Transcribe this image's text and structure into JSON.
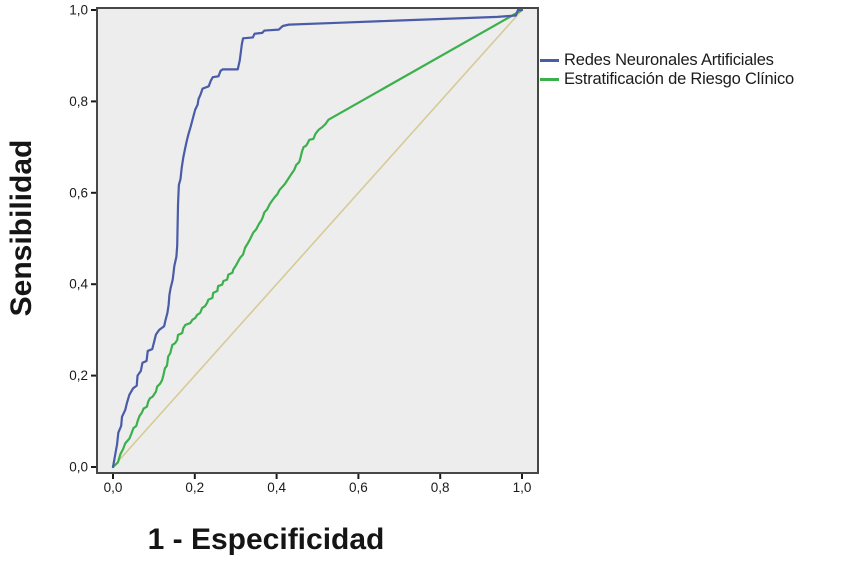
{
  "chart_data": {
    "type": "line",
    "subtype": "roc-curve",
    "title": "",
    "xlabel": "1 - Especificidad",
    "ylabel": "Sensibilidad",
    "xlim": [
      0,
      1
    ],
    "ylim": [
      0,
      1
    ],
    "grid": false,
    "plot_bg": "#ededed",
    "plot_border_color": "#474747",
    "tick_color": "#1a1a1a",
    "tick_label_color": "#1a1a1a",
    "x_ticks": {
      "values": [
        0,
        0.2,
        0.4,
        0.6,
        0.8,
        1.0
      ],
      "labels": [
        "0,0",
        "0,2",
        "0,4",
        "0,6",
        "0,8",
        "1,0"
      ]
    },
    "y_ticks": {
      "values": [
        0,
        0.2,
        0.4,
        0.6,
        0.8,
        1.0
      ],
      "labels": [
        "0,0",
        "0,2",
        "0,4",
        "0,6",
        "0,8",
        "1,0"
      ]
    },
    "legend": {
      "position": "right",
      "entries": [
        {
          "label": "Redes Neuronales Artificiales",
          "color": "#4a5ba8"
        },
        {
          "label": "Estratificación de Riesgo Clínico",
          "color": "#3cb04c"
        }
      ]
    },
    "reference_line": {
      "name": "diagonal-reference",
      "color": "#d6cb96",
      "points": [
        [
          0,
          0
        ],
        [
          1,
          1
        ]
      ]
    },
    "series": [
      {
        "name": "Estratificación de Riesgo Clínico",
        "color": "#3cb04c",
        "points": [
          [
            0,
            0
          ],
          [
            0.012,
            0.01
          ],
          [
            0.018,
            0.028
          ],
          [
            0.025,
            0.04
          ],
          [
            0.03,
            0.052
          ],
          [
            0.04,
            0.062
          ],
          [
            0.045,
            0.073
          ],
          [
            0.05,
            0.085
          ],
          [
            0.057,
            0.09
          ],
          [
            0.06,
            0.1
          ],
          [
            0.065,
            0.112
          ],
          [
            0.07,
            0.118
          ],
          [
            0.075,
            0.128
          ],
          [
            0.083,
            0.132
          ],
          [
            0.086,
            0.143
          ],
          [
            0.09,
            0.15
          ],
          [
            0.097,
            0.154
          ],
          [
            0.105,
            0.165
          ],
          [
            0.108,
            0.176
          ],
          [
            0.115,
            0.182
          ],
          [
            0.12,
            0.19
          ],
          [
            0.123,
            0.2
          ],
          [
            0.127,
            0.216
          ],
          [
            0.132,
            0.222
          ],
          [
            0.135,
            0.242
          ],
          [
            0.14,
            0.249
          ],
          [
            0.145,
            0.267
          ],
          [
            0.152,
            0.271
          ],
          [
            0.157,
            0.278
          ],
          [
            0.159,
            0.289
          ],
          [
            0.169,
            0.293
          ],
          [
            0.172,
            0.304
          ],
          [
            0.177,
            0.311
          ],
          [
            0.189,
            0.315
          ],
          [
            0.194,
            0.322
          ],
          [
            0.201,
            0.326
          ],
          [
            0.206,
            0.333
          ],
          [
            0.213,
            0.337
          ],
          [
            0.218,
            0.348
          ],
          [
            0.225,
            0.352
          ],
          [
            0.23,
            0.359
          ],
          [
            0.233,
            0.366
          ],
          [
            0.243,
            0.37
          ],
          [
            0.245,
            0.381
          ],
          [
            0.255,
            0.385
          ],
          [
            0.257,
            0.396
          ],
          [
            0.267,
            0.399
          ],
          [
            0.27,
            0.407
          ],
          [
            0.279,
            0.41
          ],
          [
            0.282,
            0.421
          ],
          [
            0.292,
            0.425
          ],
          [
            0.294,
            0.432
          ],
          [
            0.3,
            0.44
          ],
          [
            0.306,
            0.45
          ],
          [
            0.311,
            0.458
          ],
          [
            0.318,
            0.465
          ],
          [
            0.323,
            0.48
          ],
          [
            0.33,
            0.49
          ],
          [
            0.336,
            0.5
          ],
          [
            0.343,
            0.513
          ],
          [
            0.35,
            0.52
          ],
          [
            0.357,
            0.532
          ],
          [
            0.363,
            0.54
          ],
          [
            0.366,
            0.546
          ],
          [
            0.37,
            0.557
          ],
          [
            0.377,
            0.564
          ],
          [
            0.383,
            0.575
          ],
          [
            0.39,
            0.584
          ],
          [
            0.395,
            0.59
          ],
          [
            0.402,
            0.597
          ],
          [
            0.407,
            0.606
          ],
          [
            0.413,
            0.612
          ],
          [
            0.42,
            0.619
          ],
          [
            0.428,
            0.63
          ],
          [
            0.436,
            0.641
          ],
          [
            0.443,
            0.65
          ],
          [
            0.448,
            0.661
          ],
          [
            0.455,
            0.667
          ],
          [
            0.458,
            0.675
          ],
          [
            0.462,
            0.69
          ],
          [
            0.466,
            0.7
          ],
          [
            0.472,
            0.703
          ],
          [
            0.475,
            0.707
          ],
          [
            0.48,
            0.716
          ],
          [
            0.49,
            0.718
          ],
          [
            0.495,
            0.729
          ],
          [
            0.503,
            0.738
          ],
          [
            0.512,
            0.744
          ],
          [
            0.52,
            0.751
          ],
          [
            0.527,
            0.76
          ],
          [
            1,
            1
          ]
        ]
      },
      {
        "name": "Redes Neuronales Artificiales",
        "color": "#4a5ba8",
        "points": [
          [
            0,
            0
          ],
          [
            0.005,
            0.025
          ],
          [
            0.01,
            0.05
          ],
          [
            0.013,
            0.075
          ],
          [
            0.02,
            0.09
          ],
          [
            0.022,
            0.11
          ],
          [
            0.03,
            0.125
          ],
          [
            0.034,
            0.14
          ],
          [
            0.04,
            0.158
          ],
          [
            0.049,
            0.172
          ],
          [
            0.058,
            0.178
          ],
          [
            0.06,
            0.2
          ],
          [
            0.068,
            0.21
          ],
          [
            0.072,
            0.228
          ],
          [
            0.082,
            0.232
          ],
          [
            0.085,
            0.254
          ],
          [
            0.096,
            0.258
          ],
          [
            0.1,
            0.272
          ],
          [
            0.105,
            0.29
          ],
          [
            0.113,
            0.3
          ],
          [
            0.125,
            0.308
          ],
          [
            0.128,
            0.32
          ],
          [
            0.133,
            0.337
          ],
          [
            0.136,
            0.355
          ],
          [
            0.138,
            0.377
          ],
          [
            0.141,
            0.392
          ],
          [
            0.146,
            0.41
          ],
          [
            0.148,
            0.425
          ],
          [
            0.15,
            0.44
          ],
          [
            0.155,
            0.46
          ],
          [
            0.157,
            0.485
          ],
          [
            0.158,
            0.53
          ],
          [
            0.159,
            0.575
          ],
          [
            0.161,
            0.617
          ],
          [
            0.165,
            0.63
          ],
          [
            0.168,
            0.655
          ],
          [
            0.172,
            0.678
          ],
          [
            0.177,
            0.7
          ],
          [
            0.181,
            0.716
          ],
          [
            0.185,
            0.73
          ],
          [
            0.19,
            0.745
          ],
          [
            0.195,
            0.762
          ],
          [
            0.201,
            0.782
          ],
          [
            0.207,
            0.793
          ],
          [
            0.209,
            0.805
          ],
          [
            0.214,
            0.815
          ],
          [
            0.219,
            0.828
          ],
          [
            0.234,
            0.833
          ],
          [
            0.239,
            0.845
          ],
          [
            0.244,
            0.853
          ],
          [
            0.258,
            0.855
          ],
          [
            0.263,
            0.867
          ],
          [
            0.268,
            0.87
          ],
          [
            0.305,
            0.87
          ],
          [
            0.31,
            0.89
          ],
          [
            0.315,
            0.925
          ],
          [
            0.318,
            0.938
          ],
          [
            0.342,
            0.94
          ],
          [
            0.346,
            0.948
          ],
          [
            0.365,
            0.95
          ],
          [
            0.37,
            0.955
          ],
          [
            0.405,
            0.957
          ],
          [
            0.415,
            0.965
          ],
          [
            0.43,
            0.968
          ],
          [
            0.55,
            0.972
          ],
          [
            0.7,
            0.977
          ],
          [
            0.85,
            0.982
          ],
          [
            0.94,
            0.985
          ],
          [
            0.985,
            0.988
          ],
          [
            0.99,
            1
          ],
          [
            1,
            1
          ]
        ]
      }
    ]
  }
}
